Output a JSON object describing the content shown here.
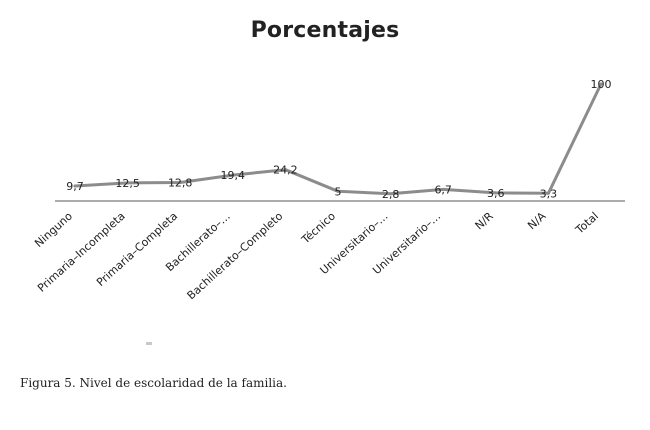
{
  "chart_data": {
    "type": "line",
    "title": "Porcentajes",
    "xlabel": "",
    "ylabel": "",
    "ylim": [
      0,
      100
    ],
    "grid": false,
    "legend": "none",
    "categories": [
      "Ninguno",
      "Primaria–Incompleta",
      "Primaria–Completa",
      "Bachillerato–…",
      "Bachillerato–Completo",
      "Técnico",
      "Universitario–…",
      "Universitario–…",
      "N/R",
      "N/A",
      "Total"
    ],
    "values": [
      9.7,
      12.5,
      12.8,
      19.4,
      24.2,
      5,
      2.8,
      6.7,
      3.6,
      3.3,
      100
    ],
    "data_labels": [
      "9,7",
      "12,5",
      "12,8",
      "19,4",
      "24,2",
      "5",
      "2,8",
      "6,7",
      "3,6",
      "3,3",
      "100"
    ],
    "colors": {
      "line": "#8c8c8c",
      "axis": "#7a7a7a",
      "text": "#222222"
    }
  },
  "caption": "Figura 5. Nivel de escolaridad de la familia."
}
